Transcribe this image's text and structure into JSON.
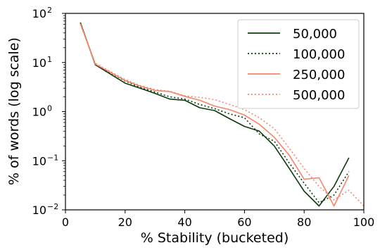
{
  "chart_data": {
    "type": "line",
    "title": "",
    "xlabel": "% Stability (bucketed)",
    "ylabel": "% of words (log scale)",
    "xlim": [
      0,
      100
    ],
    "ylim": [
      0.01,
      100
    ],
    "yscale": "log",
    "grid": false,
    "legend_position": "top-right",
    "x_ticks": [
      0,
      20,
      40,
      60,
      80,
      100
    ],
    "y_ticks": [
      {
        "value": 0.01,
        "base": "10",
        "exp": "−2"
      },
      {
        "value": 0.1,
        "base": "10",
        "exp": "−1"
      },
      {
        "value": 1,
        "base": "10",
        "exp": "0"
      },
      {
        "value": 10,
        "base": "10",
        "exp": "1"
      },
      {
        "value": 100,
        "base": "10",
        "exp": "2"
      }
    ],
    "series": [
      {
        "name": "50,000",
        "color": "#0d3b0d",
        "style": "solid",
        "x": [
          5,
          10,
          20,
          25,
          30,
          35,
          40,
          45,
          50,
          55,
          60,
          65,
          70,
          75,
          80,
          85,
          90,
          95
        ],
        "y": [
          65,
          9.0,
          3.8,
          3.0,
          2.35,
          1.8,
          1.7,
          1.2,
          1.05,
          0.72,
          0.5,
          0.4,
          0.2,
          0.07,
          0.024,
          0.012,
          0.03,
          0.115
        ]
      },
      {
        "name": "100,000",
        "color": "#0d3b0d",
        "style": "dotted",
        "x": [
          5,
          10,
          20,
          25,
          30,
          35,
          40,
          45,
          50,
          55,
          60,
          65,
          70,
          75,
          80,
          85,
          90,
          95
        ],
        "y": [
          65,
          9.2,
          4.2,
          3.1,
          2.5,
          2.0,
          1.8,
          1.4,
          1.15,
          0.9,
          0.75,
          0.35,
          0.25,
          0.09,
          0.035,
          0.014,
          0.02,
          0.06
        ]
      },
      {
        "name": "250,000",
        "color": "#f4866a",
        "style": "solid",
        "x": [
          5,
          10,
          20,
          25,
          30,
          35,
          40,
          45,
          50,
          55,
          60,
          65,
          70,
          75,
          80,
          85,
          90,
          95
        ],
        "y": [
          62,
          9.3,
          4.3,
          3.3,
          2.7,
          2.55,
          2.05,
          1.7,
          1.3,
          1.1,
          0.85,
          0.55,
          0.3,
          0.13,
          0.042,
          0.045,
          0.012,
          0.05
        ]
      },
      {
        "name": "500,000",
        "color": "#f4866a",
        "style": "dotted",
        "x": [
          5,
          10,
          20,
          25,
          30,
          35,
          40,
          45,
          50,
          55,
          60,
          65,
          70,
          75,
          80,
          85,
          90,
          95,
          100
        ],
        "y": [
          60,
          9.6,
          4.5,
          3.4,
          2.8,
          2.6,
          2.1,
          1.95,
          1.75,
          1.4,
          1.1,
          0.75,
          0.45,
          0.18,
          0.07,
          0.03,
          0.016,
          0.025,
          0.012
        ]
      }
    ]
  }
}
